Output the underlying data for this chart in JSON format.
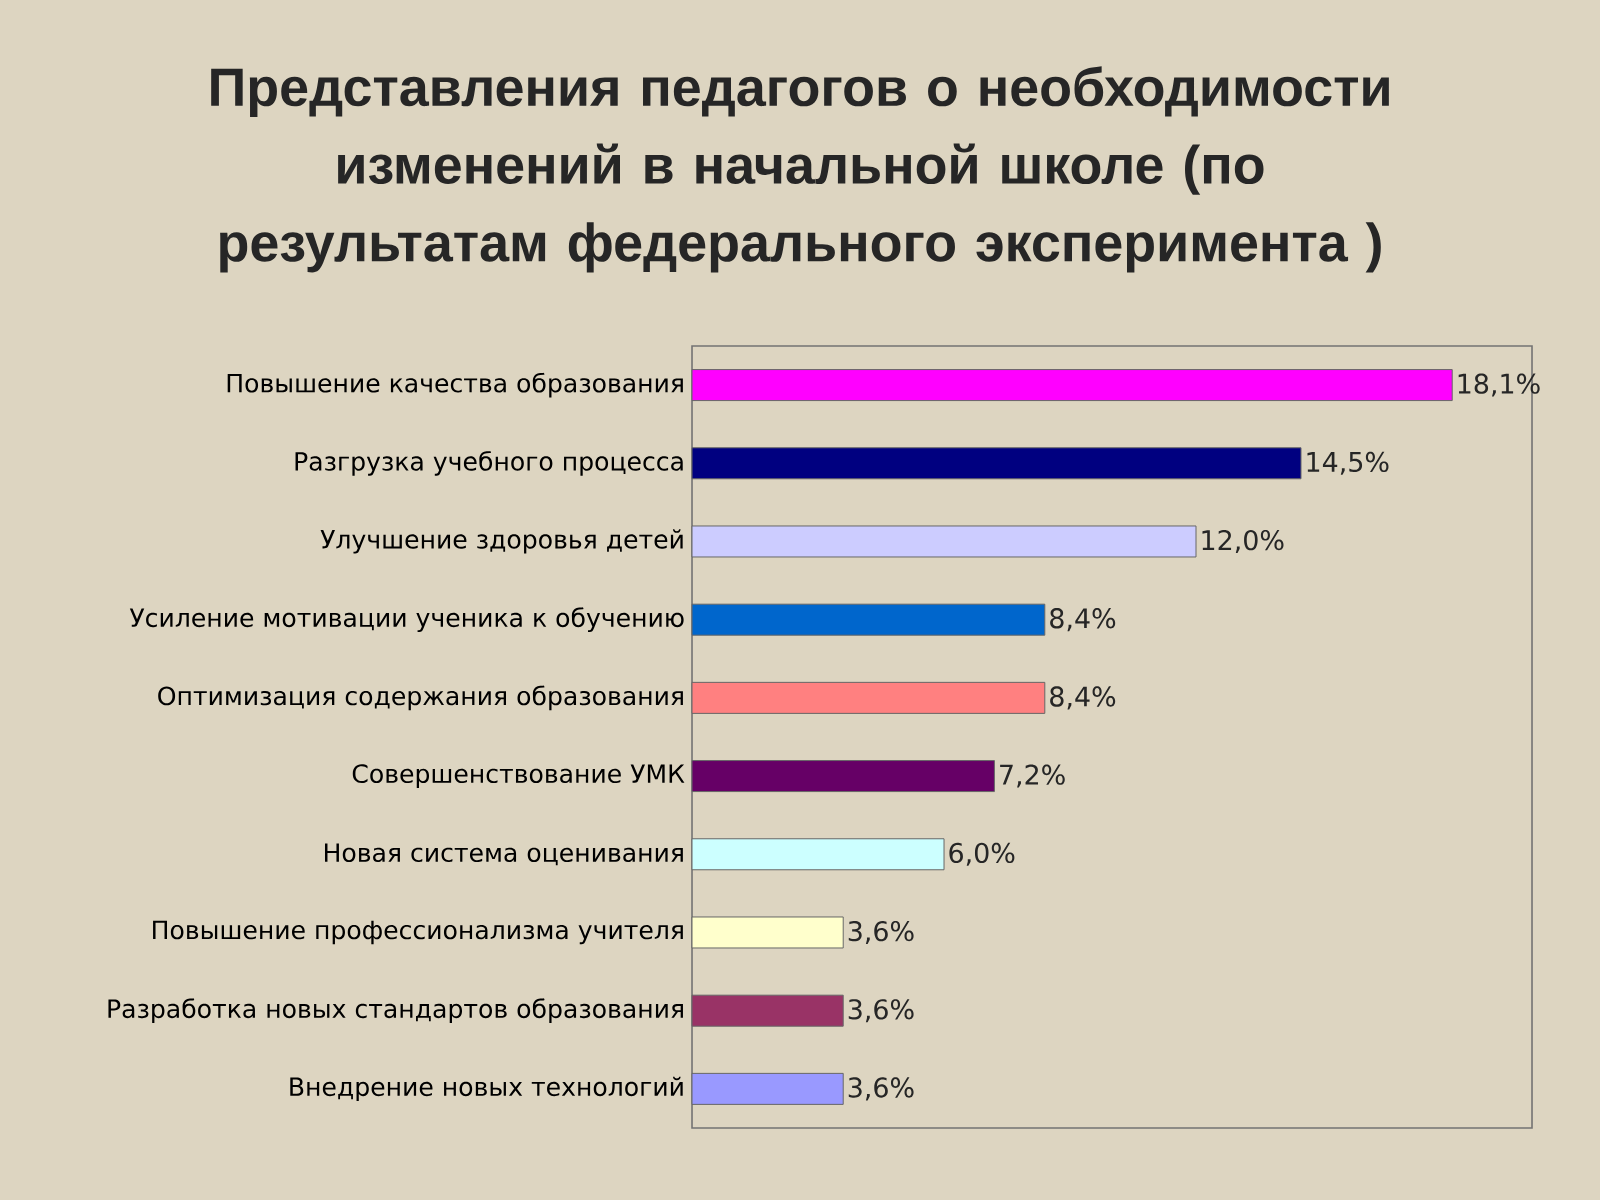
{
  "chart_data": {
    "type": "bar",
    "orientation": "horizontal",
    "title": "Представления педагогов о необходимости изменений в начальной школе (по результатам федерального эксперимента )",
    "categories": [
      "Повышение качества образования",
      "Разгрузка учебного процесса",
      "Улучшение здоровья детей",
      "Усиление мотивации ученика к обучению",
      "Оптимизация содержания образования",
      "Совершенствование УМК",
      "Новая система оценивания",
      "Повышение профессионализма учителя",
      "Разработка новых стандартов образования",
      "Внедрение новых технологий"
    ],
    "values": [
      18.1,
      14.5,
      12.0,
      8.4,
      8.4,
      7.2,
      6.0,
      3.6,
      3.6,
      3.6
    ],
    "colors": [
      "#ff00ff",
      "#000080",
      "#ccccff",
      "#0066cc",
      "#ff8080",
      "#660066",
      "#ccffff",
      "#ffffcc",
      "#993366",
      "#9999ff"
    ],
    "value_labels": [
      "18,1%",
      "14,5%",
      "12,0%",
      "8,4%",
      "8,4%",
      "7,2%",
      "6,0%",
      "3,6%",
      "3,6%",
      "3,6%"
    ],
    "xlim": [
      0,
      20
    ],
    "tick_labels": "y"
  }
}
